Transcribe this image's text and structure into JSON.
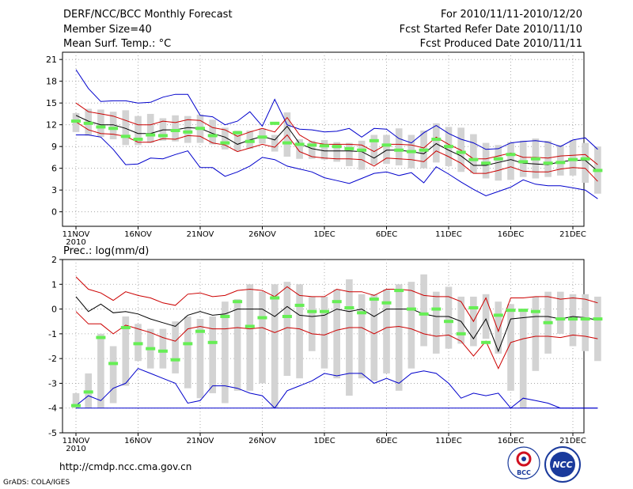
{
  "header": {
    "title": "DERF/NCC/BCC Monthly Forecast",
    "member_size": "Member Size=40",
    "variable": "Mean Surf. Temp.: °C",
    "for_range": "For 2010/11/11-2010/12/20",
    "fcst_started": "Fcst Started Refer Date 2010/11/10",
    "fcst_produced": "Fcst Produced Date 2010/11/11"
  },
  "footer": {
    "url": "http://cmdp.ncc.cma.gov.cn",
    "grads": "GrADS: COLA/IGES",
    "logo_bcc": "BCC",
    "logo_ncc": "NCC"
  },
  "colors": {
    "box": "#d3d3d3",
    "median": "#66ee55",
    "mean": "#000000",
    "sd": "#cc0000",
    "extreme": "#0000cc"
  },
  "chart_data": [
    {
      "type": "box",
      "title": "Mean Surf. Temp.: °C",
      "xlabel": "",
      "ylabel": "°C",
      "ylim": [
        -2,
        22
      ],
      "yticks": [
        "21",
        "18",
        "15",
        "12",
        "9",
        "6",
        "3",
        "0"
      ],
      "ytick_values": [
        21,
        18,
        15,
        12,
        9,
        6,
        3,
        0
      ],
      "xticks": [
        "11NOV",
        "16NOV",
        "21NOV",
        "26NOV",
        "1DEC",
        "6DEC",
        "11DEC",
        "16DEC",
        "21DEC"
      ],
      "xtick_days": [
        1,
        6,
        11,
        16,
        21,
        26,
        31,
        36,
        41
      ],
      "year_label": "2010",
      "series": [
        {
          "name": "box_low",
          "values": [
            11.0,
            10.5,
            10.3,
            10.0,
            9.2,
            9.2,
            9.5,
            9.8,
            9.7,
            9.5,
            9.5,
            9.3,
            8.6,
            8.4,
            8.7,
            9.4,
            8.3,
            7.6,
            7.3,
            7.3,
            7.2,
            6.9,
            6.3,
            5.8,
            6.5,
            6.6,
            6.4,
            6.0,
            6.0,
            6.8,
            6.3,
            5.5,
            5.3,
            4.6,
            4.3,
            4.4,
            4.8,
            4.6,
            4.8,
            5.0,
            5.0,
            4.0,
            2.5
          ]
        },
        {
          "name": "box_high",
          "values": [
            13.6,
            14.2,
            14.1,
            13.8,
            14.0,
            13.2,
            13.5,
            12.9,
            13.3,
            13.2,
            13.4,
            12.7,
            11.6,
            11.2,
            11.2,
            11.5,
            10.6,
            13.7,
            10.0,
            9.8,
            9.9,
            9.6,
            9.5,
            9.8,
            10.6,
            10.6,
            11.5,
            10.6,
            11.2,
            12.2,
            11.7,
            11.6,
            10.7,
            9.5,
            9.2,
            9.6,
            9.8,
            10.1,
            9.8,
            9.2,
            9.9,
            9.5,
            9.0
          ]
        },
        {
          "name": "median",
          "values": [
            12.5,
            12.2,
            11.7,
            11.5,
            10.4,
            10.0,
            10.6,
            10.5,
            11.2,
            11.0,
            11.5,
            10.5,
            9.5,
            10.9,
            9.7,
            10.3,
            12.2,
            9.5,
            9.3,
            9.2,
            9.1,
            9.0,
            8.7,
            8.5,
            9.8,
            9.2,
            8.5,
            8.3,
            8.5,
            10.0,
            9.0,
            8.2,
            7.2,
            6.7,
            7.3,
            7.9,
            6.9,
            7.3,
            6.7,
            6.8,
            7.2,
            7.3,
            5.7
          ]
        },
        {
          "name": "mean",
          "values": [
            13.3,
            12.5,
            12.0,
            12.0,
            11.5,
            10.8,
            10.8,
            11.3,
            11.3,
            11.6,
            11.5,
            10.8,
            10.3,
            9.3,
            9.9,
            10.4,
            9.9,
            11.8,
            9.4,
            8.7,
            8.4,
            8.4,
            8.4,
            8.3,
            7.4,
            8.5,
            8.5,
            8.3,
            8.0,
            9.4,
            8.5,
            7.7,
            6.4,
            6.4,
            6.8,
            7.2,
            6.7,
            6.6,
            6.5,
            6.9,
            7.1,
            7.1,
            5.6
          ]
        },
        {
          "name": "mean_plus_sd",
          "values": [
            15.0,
            13.8,
            13.5,
            13.2,
            12.6,
            12.0,
            12.0,
            12.5,
            12.3,
            12.7,
            12.6,
            11.6,
            11.3,
            10.4,
            11.0,
            11.5,
            11.0,
            13.0,
            10.6,
            9.6,
            9.3,
            9.3,
            9.3,
            9.2,
            8.3,
            9.3,
            9.3,
            9.2,
            8.8,
            10.3,
            9.3,
            8.5,
            7.3,
            7.3,
            7.7,
            8.1,
            7.5,
            7.5,
            7.4,
            7.7,
            7.8,
            7.9,
            6.5
          ]
        },
        {
          "name": "mean_minus_sd",
          "values": [
            12.4,
            11.3,
            10.8,
            10.7,
            10.4,
            9.6,
            9.6,
            10.1,
            10.0,
            10.5,
            10.4,
            9.5,
            9.2,
            8.3,
            8.8,
            9.3,
            8.9,
            10.6,
            8.3,
            7.6,
            7.4,
            7.3,
            7.3,
            7.2,
            6.3,
            7.4,
            7.3,
            7.2,
            6.9,
            8.4,
            7.6,
            6.7,
            5.3,
            5.3,
            5.7,
            6.2,
            5.6,
            5.5,
            5.5,
            5.9,
            6.1,
            6.0,
            4.2
          ]
        },
        {
          "name": "max",
          "values": [
            19.6,
            17.0,
            15.2,
            15.3,
            15.3,
            15.0,
            15.1,
            15.8,
            16.2,
            16.2,
            13.3,
            13.1,
            12.0,
            12.5,
            13.8,
            11.8,
            15.5,
            12.0,
            11.4,
            11.3,
            11.0,
            11.1,
            11.5,
            10.3,
            11.5,
            11.4,
            10.1,
            9.5,
            10.9,
            11.9,
            10.8,
            10.0,
            9.5,
            8.6,
            8.7,
            9.5,
            9.7,
            9.8,
            9.6,
            9.0,
            9.9,
            10.2,
            8.6
          ]
        },
        {
          "name": "min",
          "values": [
            10.6,
            10.6,
            10.3,
            8.6,
            6.5,
            6.6,
            7.4,
            7.3,
            7.9,
            8.4,
            6.1,
            6.1,
            4.9,
            5.5,
            6.3,
            7.5,
            7.2,
            6.3,
            5.9,
            5.5,
            4.7,
            4.3,
            3.9,
            4.6,
            5.3,
            5.5,
            5.0,
            5.4,
            4.0,
            6.2,
            5.2,
            4.1,
            3.1,
            2.2,
            2.8,
            3.4,
            4.4,
            3.8,
            3.6,
            3.6,
            3.3,
            3.0,
            1.8
          ]
        }
      ]
    },
    {
      "type": "box",
      "title": "Prec.: log(mm/d)",
      "xlabel": "",
      "ylabel": "log(mm/d)",
      "ylim": [
        -5,
        2
      ],
      "yticks": [
        "2",
        "1",
        "0",
        "-1",
        "-2",
        "-3",
        "-4",
        "-5"
      ],
      "ytick_values": [
        2,
        1,
        0,
        -1,
        -2,
        -3,
        -4,
        -5
      ],
      "xticks": [
        "11NOV",
        "16NOV",
        "21NOV",
        "26NOV",
        "1DEC",
        "6DEC",
        "11DEC",
        "16DEC",
        "21DEC"
      ],
      "xtick_days": [
        1,
        6,
        11,
        16,
        21,
        26,
        31,
        36,
        41
      ],
      "year_label": "2010",
      "series": [
        {
          "name": "box_low",
          "values": [
            -4.0,
            -4.0,
            -4.0,
            -3.8,
            -3.1,
            -2.1,
            -2.4,
            -2.4,
            -2.6,
            -3.2,
            -3.6,
            -3.4,
            -3.8,
            -3.3,
            -3.3,
            -3.0,
            -4.0,
            -2.7,
            -2.8,
            -1.7,
            -2.4,
            -2.8,
            -3.5,
            -2.8,
            -2.9,
            -2.6,
            -3.3,
            -2.4,
            -1.5,
            -1.8,
            -1.6,
            -1.4,
            -1.5,
            -1.2,
            -1.8,
            -3.3,
            -4.0,
            -2.5,
            -1.8,
            -1.0,
            -1.5,
            -1.7,
            -2.1
          ]
        },
        {
          "name": "box_high",
          "values": [
            -3.4,
            -2.6,
            -1.0,
            -1.5,
            -0.3,
            -0.6,
            -0.8,
            -0.8,
            -0.5,
            -0.3,
            -0.4,
            -0.3,
            0.3,
            0.4,
            1.0,
            0.7,
            1.0,
            1.1,
            1.0,
            0.5,
            0.5,
            0.8,
            1.2,
            0.6,
            0.6,
            0.8,
            1.0,
            1.1,
            1.4,
            0.7,
            0.9,
            0.5,
            0.5,
            0.6,
            0.3,
            0.2,
            -0.1,
            0.5,
            0.7,
            0.7,
            0.6,
            0.6,
            0.5
          ]
        },
        {
          "name": "median",
          "values": [
            -3.9,
            -3.35,
            -1.15,
            -2.2,
            -0.75,
            -1.4,
            -1.6,
            -1.7,
            -2.05,
            -1.4,
            -0.9,
            -1.35,
            -0.3,
            0.3,
            -0.7,
            -0.35,
            0.45,
            -0.3,
            0.15,
            -0.1,
            -0.1,
            0.3,
            0.05,
            -0.15,
            0.4,
            0.25,
            0.75,
            0.0,
            -0.2,
            0.0,
            -0.5,
            -1.0,
            0.05,
            -1.35,
            -0.25,
            -0.05,
            -0.05,
            -0.1,
            -0.55,
            -0.4,
            -0.4,
            -0.4,
            -0.4
          ]
        },
        {
          "name": "mean",
          "values": [
            0.5,
            -0.1,
            0.2,
            -0.15,
            -0.1,
            -0.2,
            -0.4,
            -0.55,
            -0.7,
            -0.25,
            -0.1,
            -0.25,
            -0.2,
            0.0,
            0.0,
            0.0,
            -0.3,
            0.1,
            -0.25,
            -0.3,
            -0.25,
            0.0,
            -0.1,
            0.0,
            -0.3,
            0.0,
            0.0,
            0.0,
            -0.2,
            -0.3,
            -0.3,
            -0.5,
            -1.2,
            -0.4,
            -1.7,
            -0.4,
            -0.35,
            -0.3,
            -0.3,
            -0.4,
            -0.3,
            -0.35,
            -0.45
          ]
        },
        {
          "name": "mean_plus_sd",
          "values": [
            1.3,
            0.8,
            0.65,
            0.35,
            0.7,
            0.55,
            0.45,
            0.25,
            0.15,
            0.6,
            0.65,
            0.5,
            0.55,
            0.75,
            0.8,
            0.75,
            0.5,
            0.9,
            0.55,
            0.5,
            0.5,
            0.8,
            0.7,
            0.7,
            0.55,
            0.8,
            0.8,
            0.75,
            0.55,
            0.5,
            0.5,
            0.3,
            -0.5,
            0.45,
            -0.9,
            0.45,
            0.45,
            0.5,
            0.5,
            0.4,
            0.45,
            0.4,
            0.25
          ]
        },
        {
          "name": "mean_minus_sd",
          "values": [
            -0.1,
            -0.6,
            -0.6,
            -1.0,
            -0.65,
            -0.8,
            -0.95,
            -1.15,
            -1.3,
            -0.8,
            -0.7,
            -0.8,
            -0.8,
            -0.75,
            -0.8,
            -0.75,
            -0.95,
            -0.75,
            -0.8,
            -1.0,
            -1.05,
            -0.85,
            -0.75,
            -0.75,
            -1.0,
            -0.75,
            -0.7,
            -0.8,
            -1.0,
            -1.1,
            -1.05,
            -1.3,
            -1.9,
            -1.3,
            -2.4,
            -1.35,
            -1.2,
            -1.1,
            -1.1,
            -1.15,
            -1.05,
            -1.1,
            -1.2
          ]
        },
        {
          "name": "max",
          "values": [
            -3.9,
            -3.5,
            -3.7,
            -3.2,
            -3.0,
            -2.4,
            -2.6,
            -2.8,
            -3.0,
            -3.8,
            -3.7,
            -3.1,
            -3.1,
            -3.2,
            -3.4,
            -3.5,
            -4.0,
            -3.3,
            -3.1,
            -2.9,
            -2.6,
            -2.7,
            -2.6,
            -2.6,
            -3.0,
            -2.8,
            -3.0,
            -2.6,
            -2.5,
            -2.6,
            -3.0,
            -3.6,
            -3.4,
            -3.5,
            -3.4,
            -4.0,
            -3.6,
            -3.7,
            -3.8,
            -4.0,
            -4.0,
            -4.0,
            -4.0
          ]
        },
        {
          "name": "min",
          "values": [
            -4.0,
            -4.0,
            -4.0,
            -4.0,
            -4.0,
            -4.0,
            -4.0,
            -4.0,
            -4.0,
            -4.0,
            -4.0,
            -4.0,
            -4.0,
            -4.0,
            -4.0,
            -4.0,
            -4.0,
            -4.0,
            -4.0,
            -4.0,
            -4.0,
            -4.0,
            -4.0,
            -4.0,
            -4.0,
            -4.0,
            -4.0,
            -4.0,
            -4.0,
            -4.0,
            -4.0,
            -4.0,
            -4.0,
            -4.0,
            -4.0,
            -4.0,
            -4.0,
            -4.0,
            -4.0,
            -4.0,
            -4.0,
            -4.0,
            -4.0
          ]
        }
      ]
    }
  ]
}
